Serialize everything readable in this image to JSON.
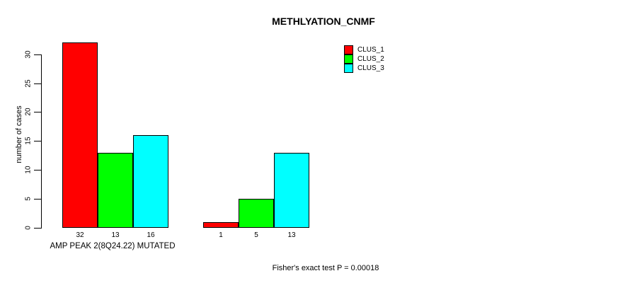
{
  "chart_data": {
    "type": "bar",
    "title": "METHLYATION_CNMF",
    "ylabel": "number of cases",
    "xlabel": "AMP PEAK 2(8Q24.22) MUTATED",
    "ylim": [
      0,
      32
    ],
    "yticks": [
      0,
      5,
      10,
      15,
      20,
      25,
      30
    ],
    "grid": false,
    "series": [
      {
        "name": "CLUS_1",
        "color": "#ff0000",
        "values": [
          32,
          1
        ]
      },
      {
        "name": "CLUS_2",
        "color": "#00ff00",
        "values": [
          13,
          5
        ]
      },
      {
        "name": "CLUS_3",
        "color": "#00ffff",
        "values": [
          16,
          13
        ]
      }
    ],
    "bar_value_labels": [
      [
        "32",
        "13",
        "16"
      ],
      [
        "1",
        "5",
        "13"
      ]
    ],
    "legend": {
      "position": "top-right",
      "entries": [
        {
          "label": "CLUS_1",
          "color": "#ff0000"
        },
        {
          "label": "CLUS_2",
          "color": "#00ff00"
        },
        {
          "label": "CLUS_3",
          "color": "#00ffff"
        }
      ]
    },
    "annotation": "Fisher's exact test P = 0.00018"
  }
}
